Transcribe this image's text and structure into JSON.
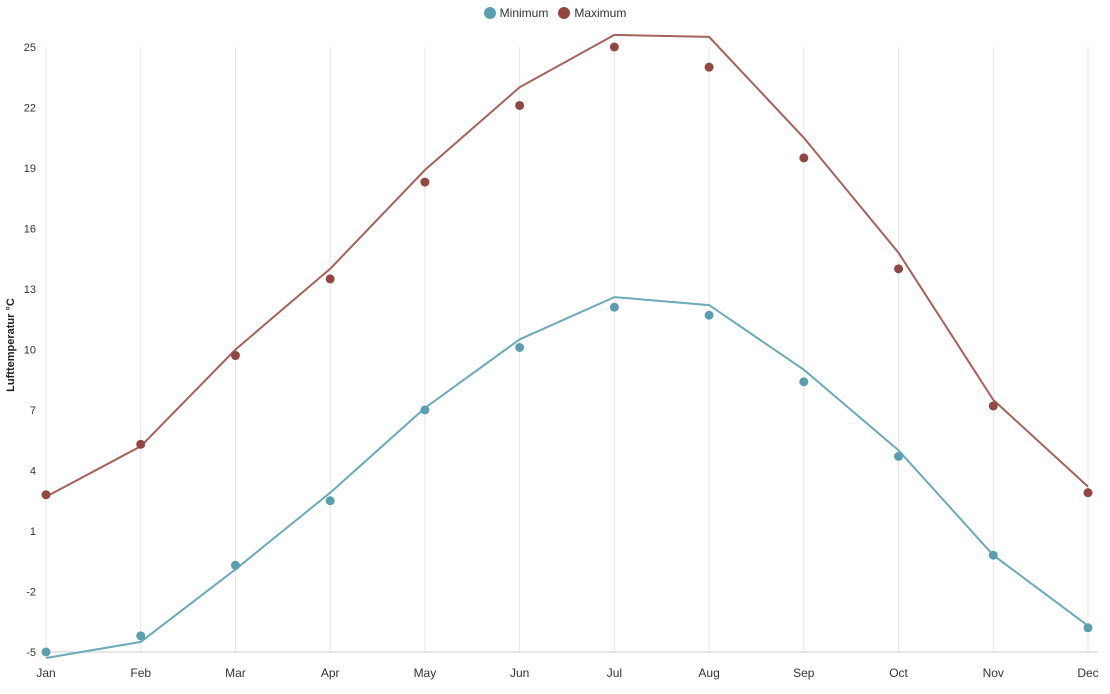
{
  "chart_data": {
    "type": "line",
    "categories": [
      "Jan",
      "Feb",
      "Mar",
      "Apr",
      "May",
      "Jun",
      "Jul",
      "Aug",
      "Sep",
      "Oct",
      "Nov",
      "Dec"
    ],
    "ylabel": "Lufttemperatur °C",
    "ylim": [
      -5,
      25
    ],
    "yticks": [
      "25",
      "22",
      "19",
      "16",
      "13",
      "10",
      "7",
      "4",
      "1",
      "-2",
      "-5"
    ],
    "grid": "vertical",
    "legend_position": "top-center",
    "series": [
      {
        "name": "Minimum",
        "color": "#5b9eb0",
        "line_color": "#6aaab9",
        "points": [
          -5.0,
          -4.2,
          -0.7,
          2.5,
          7.0,
          10.1,
          12.1,
          11.7,
          8.4,
          4.7,
          -0.2,
          -3.8
        ],
        "line": [
          -5.3,
          -4.5,
          -0.9,
          2.9,
          7.1,
          10.5,
          12.6,
          12.2,
          9.0,
          5.0,
          -0.2,
          -3.7
        ]
      },
      {
        "name": "Maximum",
        "color": "#924642",
        "line_color": "#a4625b",
        "points": [
          2.8,
          5.3,
          9.7,
          13.5,
          18.3,
          22.1,
          25.0,
          24.0,
          19.5,
          14.0,
          7.2,
          2.9
        ],
        "line": [
          2.7,
          5.2,
          10.0,
          14.0,
          18.9,
          23.0,
          25.6,
          25.5,
          20.5,
          14.8,
          7.5,
          3.2
        ]
      }
    ]
  }
}
